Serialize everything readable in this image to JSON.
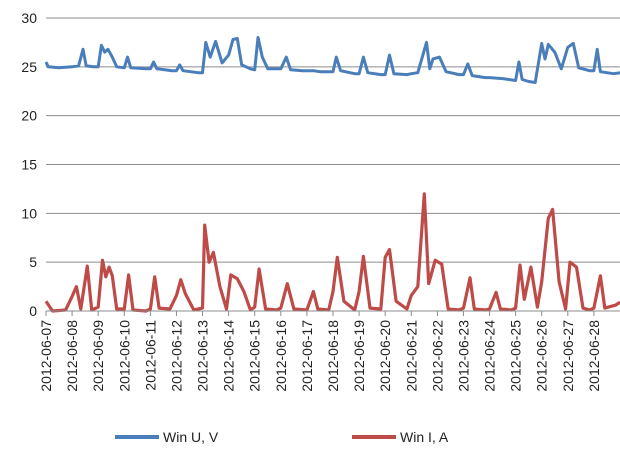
{
  "chart_data": {
    "type": "line",
    "title": "",
    "xlabel": "",
    "ylabel": "",
    "ylim": [
      0,
      30
    ],
    "yticks": [
      0,
      5,
      10,
      15,
      20,
      25,
      30
    ],
    "grid": true,
    "legend_position": "bottom",
    "x_range": [
      "2012-06-07",
      "2012-06-29"
    ],
    "x_tick_labels": [
      "2012-06-07",
      "2012-06-08",
      "2012-06-09",
      "2012-06-10",
      "2012-06-11",
      "2012-06-12",
      "2012-06-13",
      "2012-06-14",
      "2012-06-15",
      "2012-06-16",
      "2012-06-17",
      "2012-06-18",
      "2012-06-19",
      "2012-06-20",
      "2012-06-21",
      "2012-06-22",
      "2012-06-23",
      "2012-06-24",
      "2012-06-25",
      "2012-06-26",
      "2012-06-27",
      "2012-06-28"
    ],
    "series": [
      {
        "name": "Win U, V",
        "color": "#4a7ebb",
        "points": [
          [
            "2012-06-07 00:00",
            25.5
          ],
          [
            "2012-06-07 02:00",
            25.0
          ],
          [
            "2012-06-07 12:00",
            24.9
          ],
          [
            "2012-06-08 00:00",
            25.0
          ],
          [
            "2012-06-08 06:00",
            25.1
          ],
          [
            "2012-06-08 10:00",
            26.8
          ],
          [
            "2012-06-08 13:00",
            25.1
          ],
          [
            "2012-06-08 20:00",
            25.0
          ],
          [
            "2012-06-09 00:00",
            25.0
          ],
          [
            "2012-06-09 03:00",
            27.2
          ],
          [
            "2012-06-09 06:00",
            26.5
          ],
          [
            "2012-06-09 09:00",
            26.8
          ],
          [
            "2012-06-09 13:00",
            26.0
          ],
          [
            "2012-06-09 17:00",
            25.0
          ],
          [
            "2012-06-10 00:00",
            24.9
          ],
          [
            "2012-06-10 03:00",
            26.0
          ],
          [
            "2012-06-10 06:00",
            24.9
          ],
          [
            "2012-06-10 20:00",
            24.8
          ],
          [
            "2012-06-11 00:00",
            24.8
          ],
          [
            "2012-06-11 03:00",
            25.5
          ],
          [
            "2012-06-11 06:00",
            24.8
          ],
          [
            "2012-06-11 20:00",
            24.6
          ],
          [
            "2012-06-12 00:00",
            24.6
          ],
          [
            "2012-06-12 03:00",
            25.2
          ],
          [
            "2012-06-12 06:00",
            24.6
          ],
          [
            "2012-06-12 20:00",
            24.4
          ],
          [
            "2012-06-13 00:00",
            24.4
          ],
          [
            "2012-06-13 03:00",
            27.5
          ],
          [
            "2012-06-13 07:00",
            26.0
          ],
          [
            "2012-06-13 12:00",
            27.6
          ],
          [
            "2012-06-13 18:00",
            25.4
          ],
          [
            "2012-06-14 00:00",
            26.2
          ],
          [
            "2012-06-14 04:00",
            27.8
          ],
          [
            "2012-06-14 08:00",
            27.9
          ],
          [
            "2012-06-14 12:00",
            25.2
          ],
          [
            "2012-06-14 20:00",
            24.8
          ],
          [
            "2012-06-15 00:00",
            24.7
          ],
          [
            "2012-06-15 03:00",
            28.0
          ],
          [
            "2012-06-15 07:00",
            26.0
          ],
          [
            "2012-06-15 12:00",
            24.8
          ],
          [
            "2012-06-16 00:00",
            24.8
          ],
          [
            "2012-06-16 05:00",
            26.0
          ],
          [
            "2012-06-16 09:00",
            24.7
          ],
          [
            "2012-06-16 20:00",
            24.6
          ],
          [
            "2012-06-17 00:00",
            24.6
          ],
          [
            "2012-06-17 06:00",
            24.6
          ],
          [
            "2012-06-17 12:00",
            24.5
          ],
          [
            "2012-06-18 00:00",
            24.5
          ],
          [
            "2012-06-18 03:00",
            26.0
          ],
          [
            "2012-06-18 07:00",
            24.6
          ],
          [
            "2012-06-18 20:00",
            24.3
          ],
          [
            "2012-06-19 00:00",
            24.3
          ],
          [
            "2012-06-19 04:00",
            26.0
          ],
          [
            "2012-06-19 08:00",
            24.4
          ],
          [
            "2012-06-19 20:00",
            24.2
          ],
          [
            "2012-06-20 00:00",
            24.2
          ],
          [
            "2012-06-20 04:00",
            26.2
          ],
          [
            "2012-06-20 08:00",
            24.3
          ],
          [
            "2012-06-20 20:00",
            24.2
          ],
          [
            "2012-06-21 00:00",
            24.3
          ],
          [
            "2012-06-21 06:00",
            24.4
          ],
          [
            "2012-06-21 14:00",
            27.5
          ],
          [
            "2012-06-21 17:00",
            24.8
          ],
          [
            "2012-06-21 20:00",
            25.8
          ],
          [
            "2012-06-22 02:00",
            26.0
          ],
          [
            "2012-06-22 08:00",
            24.5
          ],
          [
            "2012-06-22 20:00",
            24.2
          ],
          [
            "2012-06-23 00:00",
            24.2
          ],
          [
            "2012-06-23 04:00",
            25.3
          ],
          [
            "2012-06-23 08:00",
            24.1
          ],
          [
            "2012-06-23 20:00",
            23.9
          ],
          [
            "2012-06-24 00:00",
            23.9
          ],
          [
            "2012-06-24 12:00",
            23.8
          ],
          [
            "2012-06-25 00:00",
            23.6
          ],
          [
            "2012-06-25 03:00",
            25.5
          ],
          [
            "2012-06-25 06:00",
            23.7
          ],
          [
            "2012-06-25 12:00",
            23.5
          ],
          [
            "2012-06-25 18:00",
            23.4
          ],
          [
            "2012-06-26 00:00",
            27.4
          ],
          [
            "2012-06-26 03:00",
            25.8
          ],
          [
            "2012-06-26 06:00",
            27.3
          ],
          [
            "2012-06-26 12:00",
            26.5
          ],
          [
            "2012-06-26 18:00",
            24.8
          ],
          [
            "2012-06-27 00:00",
            27.0
          ],
          [
            "2012-06-27 05:00",
            27.4
          ],
          [
            "2012-06-27 10:00",
            24.9
          ],
          [
            "2012-06-27 20:00",
            24.6
          ],
          [
            "2012-06-28 00:00",
            24.6
          ],
          [
            "2012-06-28 03:00",
            26.8
          ],
          [
            "2012-06-28 06:00",
            24.5
          ],
          [
            "2012-06-28 18:00",
            24.3
          ],
          [
            "2012-06-29 00:00",
            24.4
          ]
        ]
      },
      {
        "name": "Win I, A",
        "color": "#be4b48",
        "points": [
          [
            "2012-06-07 00:00",
            1.0
          ],
          [
            "2012-06-07 06:00",
            0.0
          ],
          [
            "2012-06-07 18:00",
            0.1
          ],
          [
            "2012-06-08 00:00",
            1.5
          ],
          [
            "2012-06-08 04:00",
            2.5
          ],
          [
            "2012-06-08 08:00",
            0.2
          ],
          [
            "2012-06-08 14:00",
            4.6
          ],
          [
            "2012-06-08 18:00",
            0.1
          ],
          [
            "2012-06-09 00:00",
            0.4
          ],
          [
            "2012-06-09 04:00",
            5.2
          ],
          [
            "2012-06-09 07:00",
            3.5
          ],
          [
            "2012-06-09 10:00",
            4.5
          ],
          [
            "2012-06-09 13:00",
            3.6
          ],
          [
            "2012-06-09 17:00",
            0.2
          ],
          [
            "2012-06-10 00:00",
            0.2
          ],
          [
            "2012-06-10 04:00",
            3.7
          ],
          [
            "2012-06-10 08:00",
            0.1
          ],
          [
            "2012-06-10 20:00",
            0.0
          ],
          [
            "2012-06-11 00:00",
            0.2
          ],
          [
            "2012-06-11 04:00",
            3.5
          ],
          [
            "2012-06-11 08:00",
            0.3
          ],
          [
            "2012-06-11 18:00",
            0.2
          ],
          [
            "2012-06-12 00:00",
            1.6
          ],
          [
            "2012-06-12 04:00",
            3.2
          ],
          [
            "2012-06-12 08:00",
            1.8
          ],
          [
            "2012-06-12 16:00",
            0.1
          ],
          [
            "2012-06-13 00:00",
            0.3
          ],
          [
            "2012-06-13 02:00",
            8.8
          ],
          [
            "2012-06-13 06:00",
            5.0
          ],
          [
            "2012-06-13 10:00",
            6.0
          ],
          [
            "2012-06-13 16:00",
            2.5
          ],
          [
            "2012-06-13 22:00",
            0.2
          ],
          [
            "2012-06-14 02:00",
            3.7
          ],
          [
            "2012-06-14 08:00",
            3.3
          ],
          [
            "2012-06-14 14:00",
            2.0
          ],
          [
            "2012-06-14 20:00",
            0.1
          ],
          [
            "2012-06-15 00:00",
            0.4
          ],
          [
            "2012-06-15 04:00",
            4.3
          ],
          [
            "2012-06-15 10:00",
            0.2
          ],
          [
            "2012-06-15 20:00",
            0.1
          ],
          [
            "2012-06-16 00:00",
            0.3
          ],
          [
            "2012-06-16 06:00",
            2.8
          ],
          [
            "2012-06-16 12:00",
            0.2
          ],
          [
            "2012-06-17 00:00",
            0.1
          ],
          [
            "2012-06-17 06:00",
            2.0
          ],
          [
            "2012-06-17 10:00",
            0.2
          ],
          [
            "2012-06-17 20:00",
            0.1
          ],
          [
            "2012-06-18 00:00",
            2.0
          ],
          [
            "2012-06-18 04:00",
            5.5
          ],
          [
            "2012-06-18 10:00",
            1.0
          ],
          [
            "2012-06-18 20:00",
            0.1
          ],
          [
            "2012-06-19 00:00",
            2.0
          ],
          [
            "2012-06-19 04:00",
            5.6
          ],
          [
            "2012-06-19 10:00",
            0.3
          ],
          [
            "2012-06-19 20:00",
            0.2
          ],
          [
            "2012-06-20 00:00",
            5.5
          ],
          [
            "2012-06-20 04:00",
            6.3
          ],
          [
            "2012-06-20 10:00",
            1.0
          ],
          [
            "2012-06-20 20:00",
            0.2
          ],
          [
            "2012-06-21 00:00",
            1.6
          ],
          [
            "2012-06-21 06:00",
            2.5
          ],
          [
            "2012-06-21 12:00",
            12.0
          ],
          [
            "2012-06-21 16:00",
            2.8
          ],
          [
            "2012-06-21 22:00",
            5.2
          ],
          [
            "2012-06-22 04:00",
            4.8
          ],
          [
            "2012-06-22 10:00",
            0.2
          ],
          [
            "2012-06-22 20:00",
            0.1
          ],
          [
            "2012-06-23 00:00",
            0.3
          ],
          [
            "2012-06-23 06:00",
            3.4
          ],
          [
            "2012-06-23 10:00",
            0.2
          ],
          [
            "2012-06-23 20:00",
            0.1
          ],
          [
            "2012-06-24 00:00",
            0.2
          ],
          [
            "2012-06-24 06:00",
            1.9
          ],
          [
            "2012-06-24 10:00",
            0.2
          ],
          [
            "2012-06-24 20:00",
            0.1
          ],
          [
            "2012-06-25 00:00",
            0.3
          ],
          [
            "2012-06-25 04:00",
            4.7
          ],
          [
            "2012-06-25 08:00",
            1.2
          ],
          [
            "2012-06-25 14:00",
            4.5
          ],
          [
            "2012-06-25 20:00",
            0.4
          ],
          [
            "2012-06-26 00:00",
            3.0
          ],
          [
            "2012-06-26 06:00",
            9.5
          ],
          [
            "2012-06-26 10:00",
            10.4
          ],
          [
            "2012-06-26 16:00",
            3.0
          ],
          [
            "2012-06-26 22:00",
            0.2
          ],
          [
            "2012-06-27 02:00",
            5.0
          ],
          [
            "2012-06-27 08:00",
            4.5
          ],
          [
            "2012-06-27 14:00",
            0.3
          ],
          [
            "2012-06-27 20:00",
            0.1
          ],
          [
            "2012-06-28 00:00",
            0.3
          ],
          [
            "2012-06-28 06:00",
            3.6
          ],
          [
            "2012-06-28 10:00",
            0.3
          ],
          [
            "2012-06-28 20:00",
            0.6
          ],
          [
            "2012-06-29 00:00",
            0.9
          ]
        ]
      }
    ]
  }
}
